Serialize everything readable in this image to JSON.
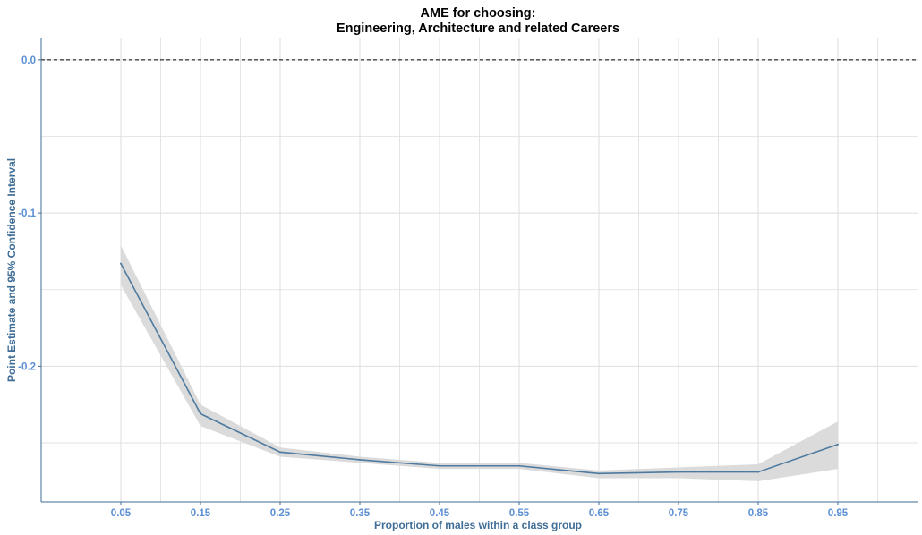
{
  "chart_data": {
    "type": "line",
    "title_line1": "AME for choosing:",
    "title_line2": "Engineering, Architecture and related Careers",
    "xlabel": "Proportion of males within a class group",
    "ylabel": "Point Estimate and 95% Confidence Interval",
    "x": [
      0.05,
      0.15,
      0.25,
      0.35,
      0.45,
      0.55,
      0.65,
      0.75,
      0.85,
      0.95
    ],
    "x_tick_labels": [
      "0.05",
      "0.15",
      "0.25",
      "0.35",
      "0.45",
      "0.55",
      "0.65",
      "0.75",
      "0.85",
      "0.95"
    ],
    "y_ticks": [
      0.0,
      -0.1,
      -0.2
    ],
    "y_tick_labels": [
      "0.0",
      "-0.1",
      "-0.2"
    ],
    "series": [
      {
        "estimate": [
          -0.133,
          -0.231,
          -0.256,
          -0.261,
          -0.265,
          -0.265,
          -0.27,
          -0.269,
          -0.269,
          -0.251
        ],
        "ci_lower": [
          -0.147,
          -0.239,
          -0.259,
          -0.263,
          -0.267,
          -0.267,
          -0.273,
          -0.273,
          -0.275,
          -0.267
        ],
        "ci_upper": [
          -0.121,
          -0.225,
          -0.253,
          -0.259,
          -0.263,
          -0.263,
          -0.268,
          -0.266,
          -0.264,
          -0.236
        ]
      }
    ],
    "reference_line_y": 0.0,
    "xlim": [
      -0.05,
      1.05
    ],
    "ylim": [
      -0.2885,
      0.0145
    ],
    "grid": true,
    "colors": {
      "line": "#4f7aa0",
      "ribbon": "#d9d9d9",
      "axis": "#3f6d96",
      "tick_label": "#5b8fd4",
      "axis_title": "#3f6d96",
      "grid": "#dedede",
      "reference": "#000000"
    }
  }
}
